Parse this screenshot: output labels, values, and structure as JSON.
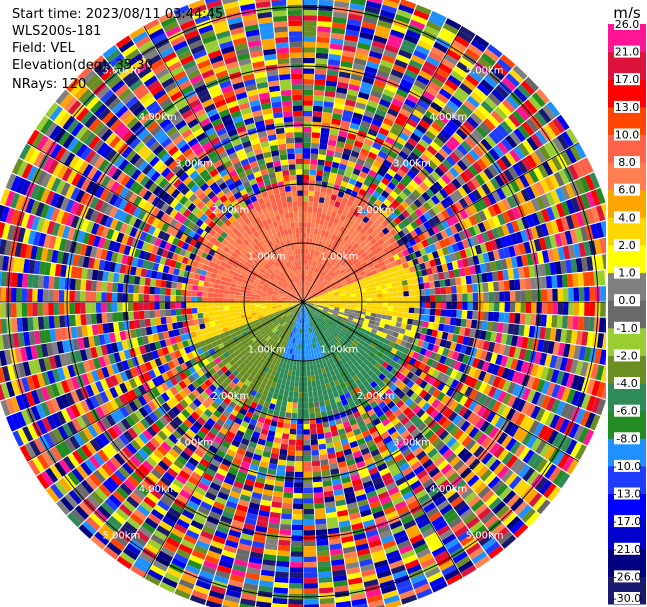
{
  "header": {
    "start_time": "Start time: 2023/08/11 03:44:45",
    "instrument": "WLS200s-181",
    "field": "Field: VEL",
    "elevation": "Elevation(deg): 35.30",
    "nrays": "NRays: 120"
  },
  "chart_data": {
    "type": "heatmap",
    "projection": "polar-ppi",
    "nrays": 120,
    "field": "VEL",
    "unit": "m/s",
    "range_rings_km": [
      1.0,
      2.0,
      3.0,
      4.0,
      5.0
    ],
    "ring_labels": [
      "1.00km",
      "2.00km",
      "3.00km",
      "4.00km",
      "5.00km"
    ],
    "max_range_km": 5.4,
    "colorbar": {
      "title": "m/s",
      "boundaries": [
        -30.0,
        -26.0,
        -21.0,
        -17.0,
        -13.0,
        -10.0,
        -8.0,
        -6.0,
        -4.0,
        -2.0,
        -1.0,
        0.0,
        1.0,
        2.0,
        4.0,
        6.0,
        8.0,
        10.0,
        13.0,
        17.0,
        21.0,
        26.0
      ],
      "tick_labels": [
        "-30.0",
        "-26.0",
        "-21.0",
        "-17.0",
        "-13.0",
        "-10.0",
        "-8.0",
        "-6.0",
        "-4.0",
        "-2.0",
        "-1.0",
        "0.0",
        "1.0",
        "2.0",
        "4.0",
        "6.0",
        "8.0",
        "10.0",
        "13.0",
        "17.0",
        "21.0",
        "26.0"
      ],
      "colors": [
        "#191970",
        "#000080",
        "#0000cd",
        "#0000ff",
        "#1e3cff",
        "#1e90ff",
        "#228b22",
        "#2e8b57",
        "#6b8e23",
        "#9acd32",
        "#696969",
        "#808080",
        "#ffff00",
        "#ffd700",
        "#ffa500",
        "#ff7f50",
        "#ff6347",
        "#ff4500",
        "#ff0000",
        "#dc143c",
        "#ff1493"
      ]
    },
    "regions": [
      {
        "range_km": [
          0.0,
          2.0
        ],
        "azimuth_deg": [
          270,
          70
        ],
        "value": 8.0
      },
      {
        "range_km": [
          0.0,
          2.0
        ],
        "azimuth_deg": [
          70,
          100
        ],
        "value": 3.0
      },
      {
        "range_km": [
          0.0,
          2.0
        ],
        "azimuth_deg": [
          100,
          115
        ],
        "value": 0.5
      },
      {
        "range_km": [
          0.0,
          2.0
        ],
        "azimuth_deg": [
          115,
          160
        ],
        "value": -5.0
      },
      {
        "range_km": [
          0.0,
          1.0
        ],
        "azimuth_deg": [
          160,
          200
        ],
        "value": -9.0
      },
      {
        "range_km": [
          1.0,
          2.0
        ],
        "azimuth_deg": [
          160,
          200
        ],
        "value": -5.0
      },
      {
        "range_km": [
          0.0,
          2.0
        ],
        "azimuth_deg": [
          200,
          250
        ],
        "value": -3.0
      },
      {
        "range_km": [
          0.0,
          2.0
        ],
        "azimuth_deg": [
          250,
          270
        ],
        "value": 3.0
      },
      {
        "range_km": [
          2.0,
          5.4
        ],
        "azimuth_deg": [
          0,
          360
        ],
        "value": "noise"
      }
    ]
  }
}
